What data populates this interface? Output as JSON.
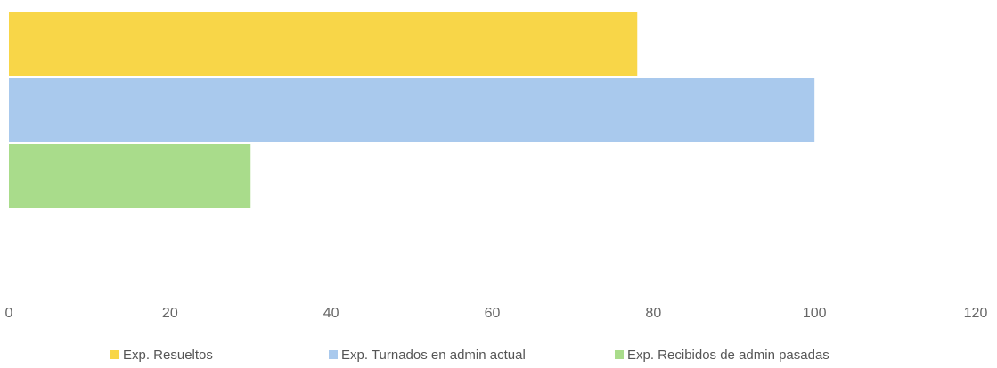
{
  "chart_data": {
    "type": "bar",
    "orientation": "horizontal",
    "categories": [
      null
    ],
    "series": [
      {
        "name": "Exp. Resueltos",
        "color": "#f8d648",
        "values": [
          78
        ]
      },
      {
        "name": "Exp. Turnados en admin actual",
        "color": "#a9c9ed",
        "values": [
          100
        ]
      },
      {
        "name": "Exp. Recibidos de admin pasadas",
        "color": "#a9dc8b",
        "values": [
          30
        ]
      }
    ],
    "xlim": [
      0,
      120
    ],
    "xticks": [
      0,
      20,
      40,
      60,
      80,
      100,
      120
    ],
    "grid": false,
    "legend": "bottom"
  }
}
